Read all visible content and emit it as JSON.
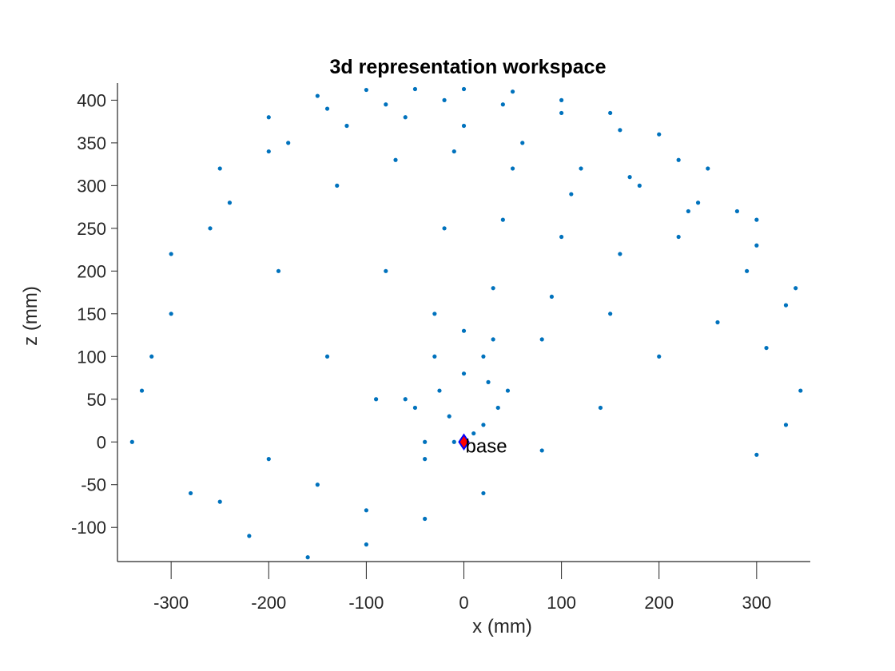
{
  "chart_data": {
    "type": "scatter",
    "title": "3d representation workspace",
    "xlabel": "x (mm)",
    "ylabel": "z (mm)",
    "xlim": [
      -355,
      355
    ],
    "ylim": [
      -140,
      420
    ],
    "x_ticks": [
      -300,
      -200,
      -100,
      0,
      100,
      200,
      300
    ],
    "y_ticks": [
      -100,
      -50,
      0,
      50,
      100,
      150,
      200,
      250,
      300,
      350,
      400
    ],
    "x_tick_labels": [
      "-300",
      "-200",
      "-100",
      "0",
      "100",
      "200",
      "300"
    ],
    "y_tick_labels": [
      "-100",
      "-50",
      "0",
      "50",
      "100",
      "150",
      "200",
      "250",
      "300",
      "350",
      "400"
    ],
    "grid": false,
    "legend": "none",
    "point_color": "#0072BD",
    "marker": {
      "x": 0,
      "y": 0,
      "color": "#FF0000",
      "edge_color": "#0000FF",
      "label": "base"
    },
    "series": [
      {
        "x": [
          -330,
          -300,
          -250,
          -200,
          -150,
          -100,
          -50,
          0,
          50,
          100,
          150,
          200,
          250,
          300,
          340,
          345,
          330,
          300,
          -340,
          -280,
          -220,
          -160,
          -100,
          -40,
          20,
          80,
          140,
          200,
          260,
          310,
          -320,
          -260,
          -200,
          -140,
          -80,
          -20,
          40,
          100,
          160,
          220,
          280,
          330,
          -300,
          -240,
          -180,
          -120,
          -60,
          0,
          60,
          120,
          180,
          240,
          300,
          -250,
          -190,
          -130,
          -70,
          -10,
          50,
          110,
          170,
          230,
          290,
          -200,
          -140,
          -80,
          -20,
          40,
          100,
          160,
          220,
          -150,
          -90,
          -30,
          30,
          90,
          150,
          -100,
          -40,
          20,
          80,
          -60,
          -30,
          0,
          30,
          45,
          20,
          -10,
          -40,
          -50,
          -25,
          0,
          25,
          35,
          10,
          -15
        ],
        "y": [
          60,
          220,
          320,
          380,
          405,
          412,
          413,
          413,
          410,
          400,
          385,
          360,
          320,
          260,
          180,
          60,
          20,
          -15,
          0,
          -60,
          -110,
          -135,
          -120,
          -90,
          -60,
          -10,
          40,
          100,
          140,
          110,
          100,
          250,
          340,
          390,
          395,
          400,
          395,
          385,
          365,
          330,
          270,
          160,
          150,
          280,
          350,
          370,
          380,
          370,
          350,
          320,
          300,
          280,
          230,
          -70,
          200,
          300,
          330,
          340,
          320,
          290,
          310,
          270,
          200,
          -20,
          100,
          200,
          250,
          260,
          240,
          220,
          240,
          -50,
          50,
          150,
          180,
          170,
          150,
          -80,
          0,
          100,
          120,
          50,
          100,
          130,
          120,
          60,
          20,
          0,
          -20,
          40,
          60,
          80,
          70,
          40,
          10,
          30
        ]
      }
    ]
  }
}
